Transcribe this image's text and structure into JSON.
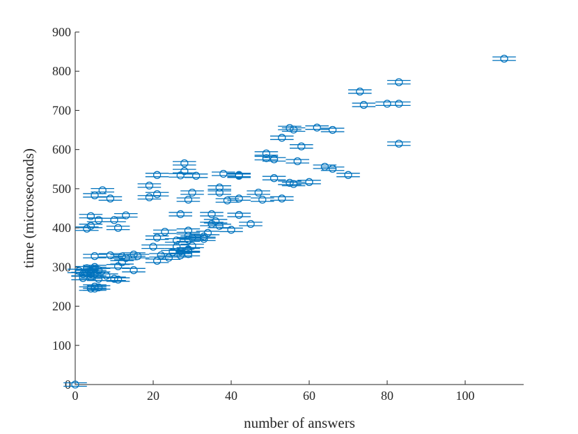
{
  "chart_data": {
    "type": "scatter",
    "title": "",
    "xlabel": "number of answers",
    "ylabel": "time (microseconds)",
    "xlim": [
      0,
      115
    ],
    "ylim": [
      0,
      900
    ],
    "xticks": [
      "0",
      "20",
      "40",
      "60",
      "80",
      "100"
    ],
    "yticks": [
      "0",
      "100",
      "200",
      "300",
      "400",
      "500",
      "600",
      "700",
      "800",
      "900"
    ],
    "grid": false,
    "marker": "circle-with-horizontal-error-bars",
    "color": "#0072BD",
    "error_bar_halfwidth": 3,
    "x": [
      0,
      1,
      2,
      2,
      3,
      3,
      3,
      4,
      4,
      4,
      4,
      4,
      4,
      5,
      5,
      5,
      5,
      5,
      5,
      5,
      6,
      6,
      6,
      6,
      7,
      8,
      9,
      9,
      10,
      10,
      11,
      11,
      11,
      12,
      12,
      13,
      13,
      15,
      15,
      16,
      19,
      19,
      20,
      21,
      21,
      21,
      21,
      22,
      23,
      24,
      25,
      26,
      26,
      27,
      27,
      27,
      27,
      28,
      28,
      29,
      29,
      29,
      29,
      29,
      29,
      29,
      30,
      30,
      30,
      31,
      33,
      33,
      34,
      35,
      35,
      36,
      37,
      37,
      37,
      38,
      39,
      40,
      42,
      42,
      42,
      42,
      45,
      47,
      48,
      49,
      49,
      51,
      51,
      53,
      53,
      55,
      55,
      56,
      56,
      57,
      58,
      60,
      62,
      64,
      66,
      66,
      70,
      73,
      74,
      80,
      83,
      83,
      83,
      110
    ],
    "y": [
      0,
      290,
      272,
      282,
      398,
      287,
      297,
      430,
      405,
      245,
      275,
      290,
      282,
      483,
      328,
      295,
      250,
      282,
      245,
      300,
      420,
      270,
      248,
      292,
      496,
      278,
      475,
      330,
      420,
      270,
      400,
      302,
      268,
      327,
      312,
      432,
      323,
      292,
      332,
      328,
      508,
      478,
      352,
      535,
      486,
      375,
      316,
      330,
      390,
      324,
      338,
      352,
      368,
      534,
      435,
      330,
      340,
      565,
      545,
      472,
      393,
      345,
      370,
      343,
      333,
      380,
      490,
      354,
      375,
      533,
      372,
      378,
      387,
      435,
      410,
      417,
      503,
      490,
      405,
      538,
      470,
      395,
      533,
      475,
      433,
      535,
      410,
      490,
      472,
      590,
      578,
      527,
      575,
      630,
      475,
      655,
      515,
      651,
      512,
      570,
      608,
      517,
      656,
      556,
      551,
      650,
      535,
      748,
      714,
      717,
      615,
      717,
      772,
      832
    ]
  }
}
